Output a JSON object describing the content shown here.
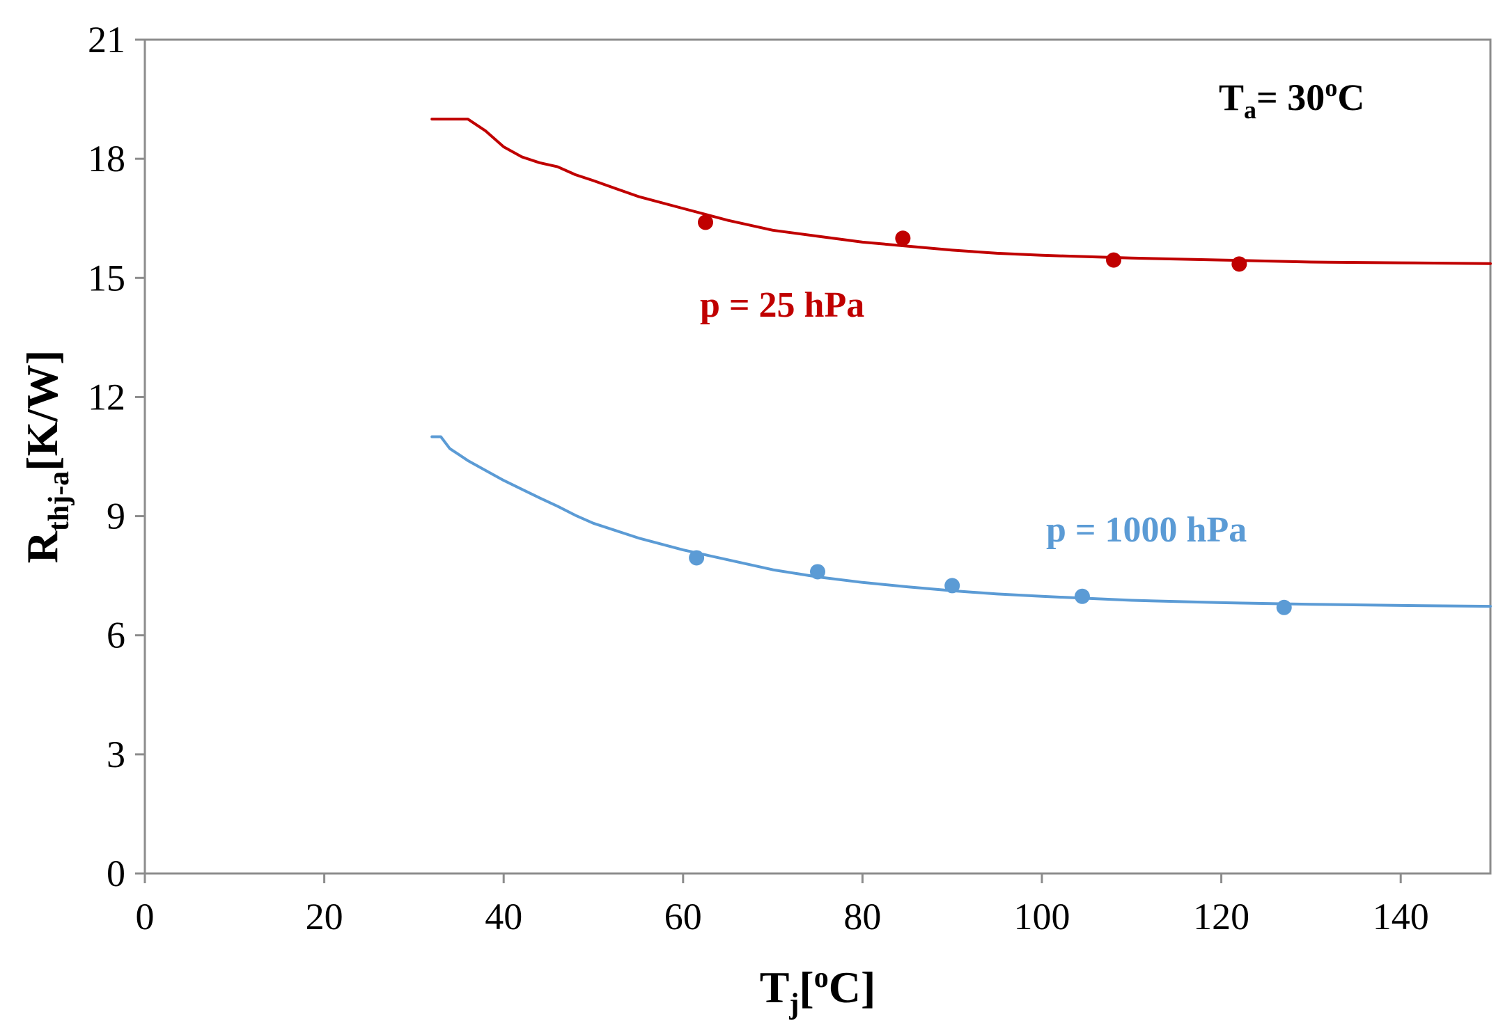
{
  "chart_data": {
    "type": "line",
    "title": "",
    "xlabel": {
      "main": "T",
      "sub": "j",
      "bracket": "[",
      "sup": "o",
      "unit": "C]"
    },
    "ylabel": {
      "main": "R",
      "sub": "thj-a",
      "unit": "[K/W]"
    },
    "xlim": [
      0,
      150
    ],
    "ylim": [
      0,
      21
    ],
    "xticks": [
      "0",
      "20",
      "40",
      "60",
      "80",
      "100",
      "120",
      "140"
    ],
    "yticks": [
      "0",
      "3",
      "6",
      "9",
      "12",
      "15",
      "18",
      "21"
    ],
    "grid": false,
    "annotation": {
      "main": "T",
      "sub": "a",
      "eq": "= 30",
      "sup": "o",
      "unit": "C"
    },
    "series": [
      {
        "name": "p = 25 hPa",
        "color": "#c00000",
        "line": {
          "x": [
            32,
            34,
            36,
            38,
            40,
            42,
            44,
            46,
            48,
            50,
            55,
            60,
            65,
            70,
            75,
            80,
            85,
            90,
            95,
            100,
            110,
            120,
            130,
            140,
            150
          ],
          "y": [
            19.0,
            19.0,
            19.0,
            18.7,
            18.3,
            18.05,
            17.9,
            17.8,
            17.6,
            17.45,
            17.05,
            16.75,
            16.45,
            16.2,
            16.05,
            15.9,
            15.8,
            15.7,
            15.62,
            15.57,
            15.5,
            15.45,
            15.4,
            15.38,
            15.36
          ]
        },
        "points": {
          "x": [
            62.5,
            84.5,
            108,
            122
          ],
          "y": [
            16.4,
            16.0,
            15.45,
            15.35
          ]
        }
      },
      {
        "name": "p = 1000 hPa",
        "color": "#5b9bd5",
        "line": {
          "x": [
            32,
            33,
            34,
            35,
            36,
            38,
            40,
            42,
            44,
            46,
            48,
            50,
            55,
            60,
            65,
            70,
            75,
            80,
            85,
            90,
            95,
            100,
            110,
            120,
            130,
            140,
            150
          ],
          "y": [
            11.0,
            11.0,
            10.7,
            10.55,
            10.4,
            10.15,
            9.9,
            9.68,
            9.46,
            9.25,
            9.02,
            8.82,
            8.45,
            8.15,
            7.9,
            7.65,
            7.47,
            7.33,
            7.22,
            7.12,
            7.04,
            6.98,
            6.88,
            6.82,
            6.78,
            6.75,
            6.73
          ]
        },
        "points": {
          "x": [
            61.5,
            75,
            90,
            104.5,
            127
          ],
          "y": [
            7.95,
            7.6,
            7.25,
            6.98,
            6.7
          ]
        }
      }
    ]
  }
}
